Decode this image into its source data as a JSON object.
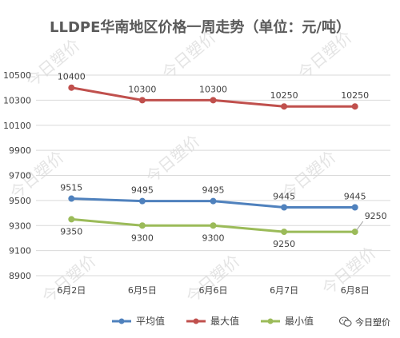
{
  "title": "LLDPE华南地区价格一周走势（单位：元/吨）",
  "watermark": "今日塑价",
  "brand": {
    "label": "今日塑价",
    "icon": "wechat-icon"
  },
  "colors": {
    "max": "#c0504d",
    "avg": "#4f81bd",
    "min": "#9bbb59",
    "grid": "#d9d9d9"
  },
  "chart_data": {
    "type": "line",
    "title": "LLDPE华南地区价格一周走势（单位：元/吨）",
    "categories": [
      "6月2日",
      "6月5日",
      "6月6日",
      "6月7日",
      "6月8日"
    ],
    "ylim": [
      8900,
      10500
    ],
    "yticks": [
      8900,
      9100,
      9300,
      9500,
      9700,
      9900,
      10100,
      10300,
      10500
    ],
    "grid": true,
    "legend_position": "bottom",
    "series": [
      {
        "name": "平均值",
        "key": "avg",
        "values": [
          9515,
          9495,
          9495,
          9445,
          9445
        ],
        "label_pos": [
          "above",
          "above",
          "above",
          "above",
          "above"
        ]
      },
      {
        "name": "最大值",
        "key": "max",
        "values": [
          10400,
          10300,
          10300,
          10250,
          10250
        ],
        "label_pos": [
          "above",
          "above",
          "above",
          "above",
          "above"
        ]
      },
      {
        "name": "最小值",
        "key": "min",
        "values": [
          9350,
          9300,
          9300,
          9250,
          9250
        ],
        "label_pos": [
          "below",
          "below",
          "below",
          "below",
          "callout"
        ]
      }
    ]
  }
}
